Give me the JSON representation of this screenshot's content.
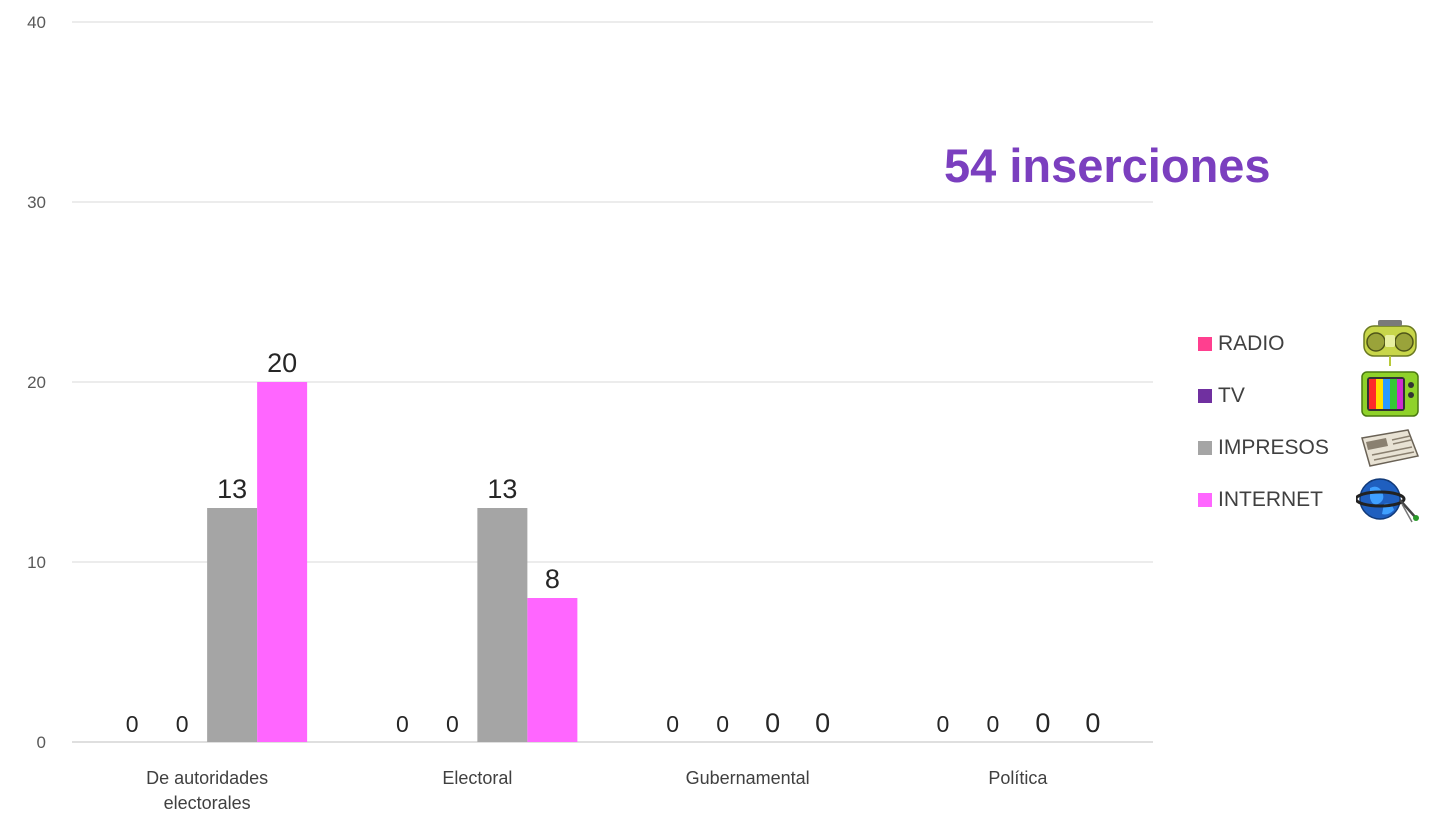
{
  "chart_data": {
    "type": "bar",
    "categories": [
      "De autoridades electorales",
      "Electoral",
      "Gubernamental",
      "Política"
    ],
    "series": [
      {
        "name": "RADIO",
        "values": [
          0,
          0,
          0,
          0
        ],
        "color": "#ff3f8f"
      },
      {
        "name": "TV",
        "values": [
          0,
          0,
          0,
          0
        ],
        "color": "#7030a0"
      },
      {
        "name": "IMPRESOS",
        "values": [
          13,
          13,
          0,
          0
        ],
        "color": "#a5a5a5"
      },
      {
        "name": "INTERNET",
        "values": [
          20,
          8,
          0,
          0
        ],
        "color": "#ff66ff"
      }
    ],
    "ylim": [
      0,
      40
    ],
    "yticks": [
      0,
      10,
      20,
      30,
      40
    ],
    "grid": true,
    "legend": "right",
    "annotation": "54 inserciones",
    "annotation_color": "#7b3fbf"
  },
  "legend_icons": [
    "radio-icon",
    "tv-icon",
    "newspaper-icon",
    "globe-icon"
  ]
}
